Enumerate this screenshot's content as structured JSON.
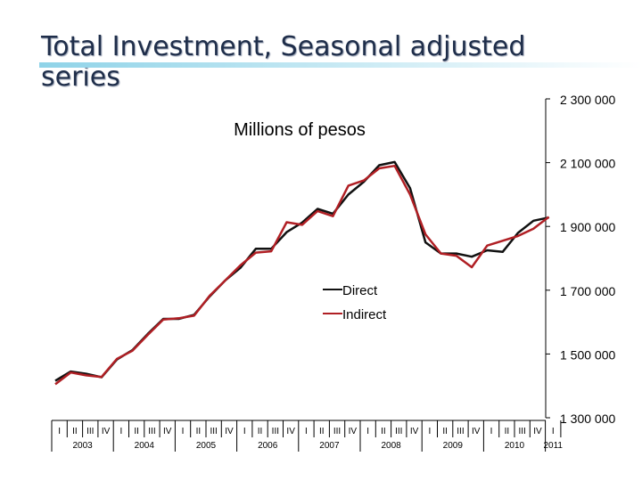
{
  "page": {
    "title": "Total Investment, Seasonal adjusted series",
    "accent": "#8fd3e8"
  },
  "chart_data": {
    "type": "line",
    "title": "Total Investment, Seasonal adjusted series",
    "subtitle": "Millions of pesos",
    "xlabel": "",
    "ylabel": "",
    "ylim": [
      1300000,
      2300000
    ],
    "yticks": [
      1300000,
      1500000,
      1700000,
      1900000,
      2100000,
      2300000
    ],
    "ytick_labels": [
      "1 300 000",
      "1 500 000",
      "1 700 000",
      "1 900 000",
      "2 100 000",
      "2 300 000"
    ],
    "quarter_labels": [
      "I",
      "II",
      "III",
      "IV",
      "I",
      "II",
      "III",
      "IV",
      "I",
      "II",
      "III",
      "IV",
      "I",
      "II",
      "III",
      "IV",
      "I",
      "II",
      "III",
      "IV",
      "I",
      "II",
      "III",
      "IV",
      "I",
      "II",
      "III",
      "IV",
      "I",
      "II",
      "III",
      "IV",
      "I"
    ],
    "years": [
      "2003",
      "2004",
      "2005",
      "2006",
      "2007",
      "2008",
      "2009",
      "2010",
      "2011"
    ],
    "legend_position": "center",
    "series": [
      {
        "name": "Direct",
        "color": "#111111",
        "values": [
          1416000,
          1445000,
          1438000,
          1427000,
          1483000,
          1512000,
          1563000,
          1610000,
          1610000,
          1623000,
          1680000,
          1730000,
          1770000,
          1830000,
          1830000,
          1882000,
          1912000,
          1955000,
          1940000,
          2000000,
          2040000,
          2092000,
          2102000,
          2020000,
          1850000,
          1815000,
          1815000,
          1805000,
          1825000,
          1820000,
          1880000,
          1918000,
          1928000
        ]
      },
      {
        "name": "Indirect",
        "color": "#b01f24",
        "values": [
          1405000,
          1442000,
          1433000,
          1428000,
          1485000,
          1510000,
          1560000,
          1608000,
          1612000,
          1620000,
          1682000,
          1730000,
          1778000,
          1818000,
          1822000,
          1913000,
          1905000,
          1948000,
          1932000,
          2028000,
          2044000,
          2082000,
          2090000,
          2000000,
          1875000,
          1815000,
          1808000,
          1772000,
          1840000,
          1855000,
          1870000,
          1893000,
          1930000
        ]
      }
    ]
  }
}
